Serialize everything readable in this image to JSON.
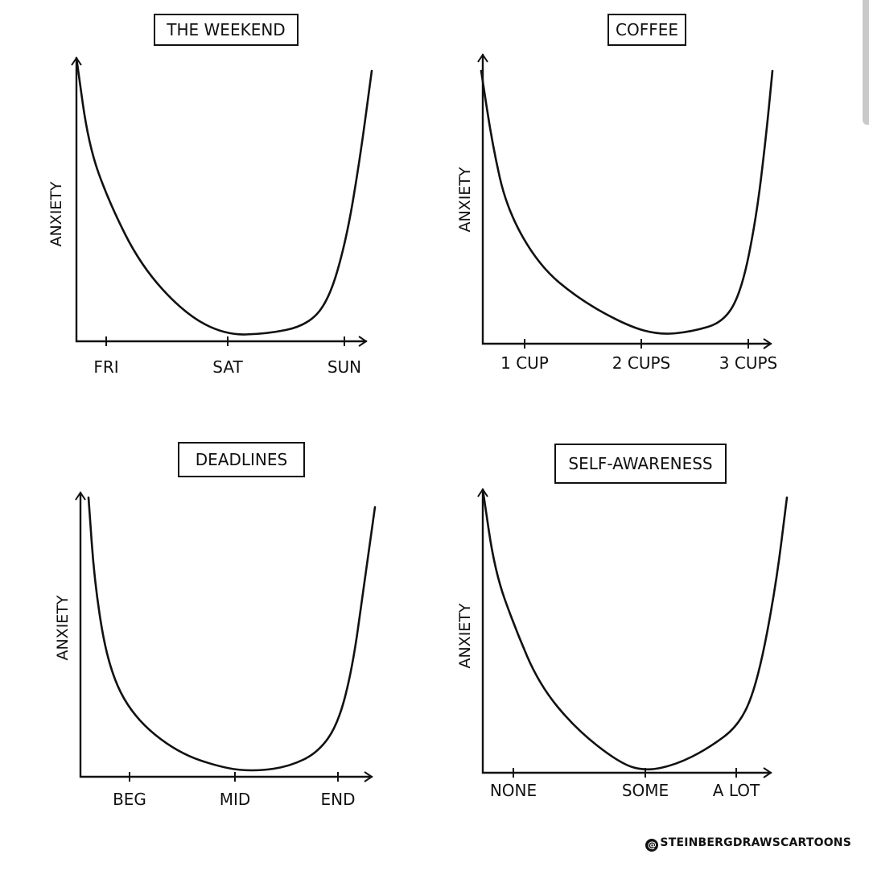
{
  "credit": "@STEINBERGDRAWSCARTOONS",
  "chart_data": [
    {
      "type": "line",
      "title": "THE WEEKEND",
      "ylabel": "ANXIETY",
      "xlabel": "",
      "x_ticks": [
        "FRI",
        "SAT",
        "SUN"
      ],
      "x": [
        -0.22,
        -0.1,
        0,
        0.25,
        0.5,
        0.75,
        0.9,
        1,
        1.1,
        1.22
      ],
      "y": [
        100,
        62,
        45,
        20,
        3,
        0,
        6,
        16,
        40,
        100
      ],
      "ylim": [
        0,
        105
      ],
      "grid": false
    },
    {
      "type": "line",
      "title": "COFFEE",
      "ylabel": "ANXIETY",
      "xlabel": "",
      "x_ticks": [
        "1 CUP",
        "2 CUPS",
        "3 CUPS"
      ],
      "x": [
        0.5,
        0.7,
        1,
        1.5,
        2,
        2.2,
        2.5,
        2.75,
        2.95,
        3.12
      ],
      "y": [
        100,
        58,
        35,
        15,
        3,
        0,
        3,
        18,
        45,
        100
      ],
      "ylim": [
        0,
        105
      ],
      "grid": false
    },
    {
      "type": "line",
      "title": "DEADLINES",
      "ylabel": "ANXIETY",
      "xlabel": "",
      "x_ticks": [
        "BEG",
        "MID",
        "END"
      ],
      "x": [
        -0.2,
        -0.15,
        -0.05,
        0.25,
        0.5,
        0.62,
        0.8,
        0.95,
        1.05,
        1.15
      ],
      "y": [
        100,
        65,
        30,
        7,
        1,
        0,
        4,
        18,
        45,
        100
      ],
      "ylim": [
        0,
        105
      ],
      "grid": false
    },
    {
      "type": "line",
      "title": "SELF-AWARENESS",
      "ylabel": "ANXIETY",
      "xlabel": "",
      "x_ticks": [
        "NONE",
        "SOME",
        "A LOT"
      ],
      "x": [
        -0.15,
        0,
        0.25,
        0.5,
        0.75,
        0.9,
        1,
        1.1,
        1.22
      ],
      "y": [
        100,
        72,
        38,
        12,
        0,
        1,
        18,
        45,
        100
      ],
      "ylim": [
        0,
        105
      ],
      "grid": false
    }
  ]
}
